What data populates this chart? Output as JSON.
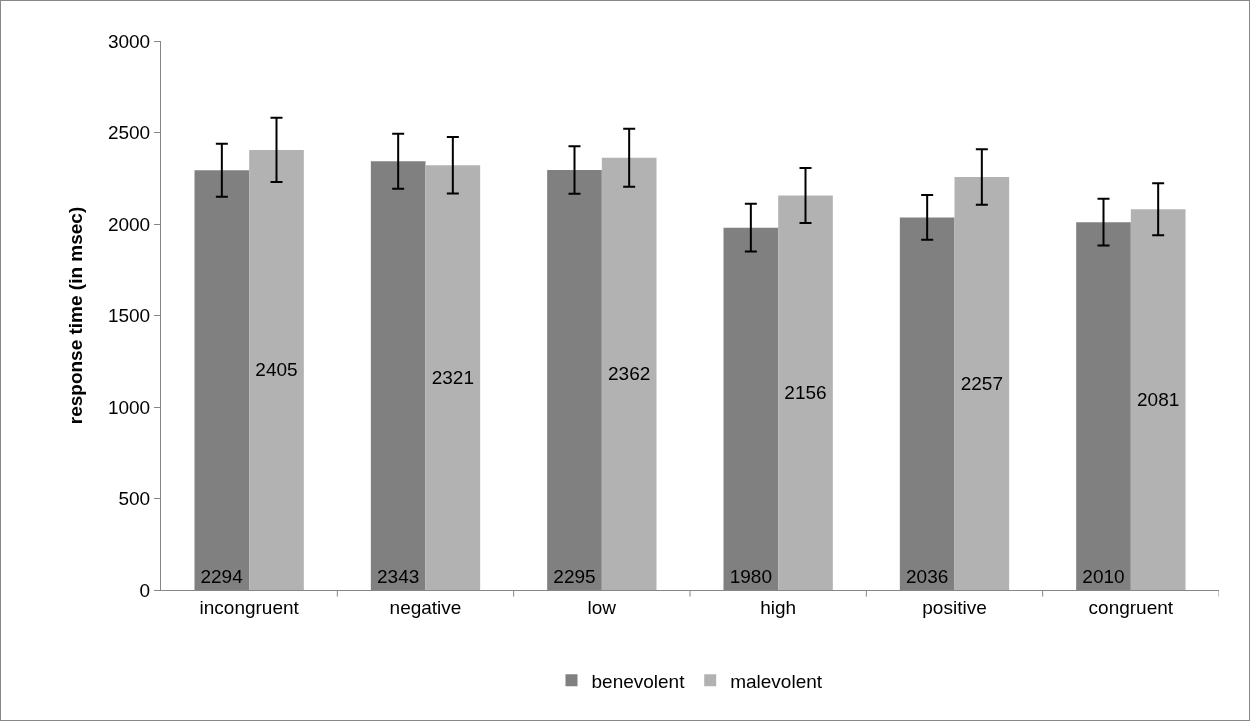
{
  "chart_data": {
    "type": "bar",
    "ylabel": "response time (in msec)",
    "categories": [
      "incongruent",
      "negative",
      "low",
      "high",
      "positive",
      "congruent"
    ],
    "series": [
      {
        "name": "benevolent",
        "color": "#808080",
        "values": [
          2294,
          2343,
          2295,
          1980,
          2036,
          2010
        ],
        "errors": [
          145,
          150,
          130,
          130,
          122,
          128
        ]
      },
      {
        "name": "malevolent",
        "color": "#b2b2b2",
        "values": [
          2405,
          2321,
          2362,
          2156,
          2257,
          2081
        ],
        "errors": [
          175,
          155,
          158,
          150,
          152,
          142
        ]
      }
    ],
    "ylim": [
      0,
      3000
    ],
    "yticks": [
      0,
      500,
      1000,
      1500,
      2000,
      2500,
      3000
    ],
    "data_labels": true,
    "grid": false,
    "legend": "bottom"
  }
}
